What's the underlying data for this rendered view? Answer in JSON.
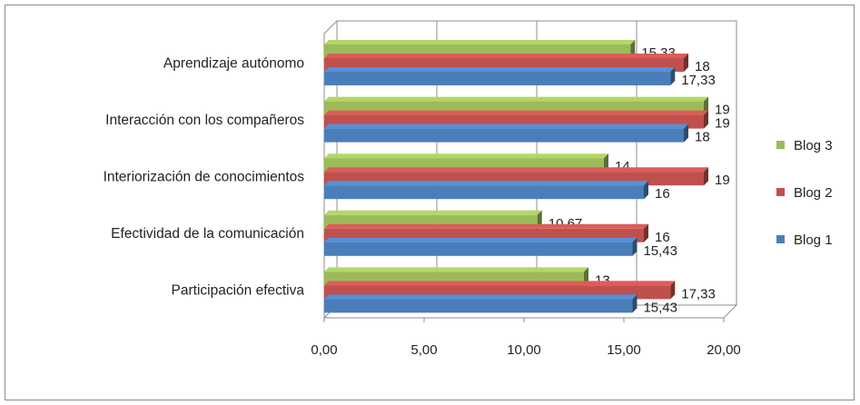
{
  "chart_data": {
    "type": "bar",
    "orientation": "horizontal",
    "style": "3d-clustered",
    "categories": [
      "Participación efectiva",
      "Efectividad de la comunicación",
      "Interiorización de conocimientos",
      "Interacción con los compañeros",
      "Aprendizaje autónomo"
    ],
    "series": [
      {
        "name": "Blog 1",
        "color": "#4a7ebb",
        "values": [
          15.43,
          15.43,
          16,
          18,
          17.33
        ],
        "labels": [
          "15,43",
          "15,43",
          "16",
          "18",
          "17,33"
        ]
      },
      {
        "name": "Blog 2",
        "color": "#c0504d",
        "values": [
          17.33,
          16,
          19,
          19,
          18
        ],
        "labels": [
          "17,33",
          "16",
          "19",
          "19",
          "18"
        ]
      },
      {
        "name": "Blog 3",
        "color": "#9bbb59",
        "values": [
          13,
          10.67,
          14,
          19,
          15.33
        ],
        "labels": [
          "13",
          "10,67",
          "14",
          "19",
          "15,33"
        ]
      }
    ],
    "xlim": [
      0,
      20
    ],
    "xticks": [
      0,
      5,
      10,
      15,
      20
    ],
    "xtick_labels": [
      "0,00",
      "5,00",
      "10,00",
      "15,00",
      "20,00"
    ],
    "grid": true,
    "legend_position": "right",
    "legend_order": [
      "Blog 3",
      "Blog 2",
      "Blog 1"
    ]
  }
}
